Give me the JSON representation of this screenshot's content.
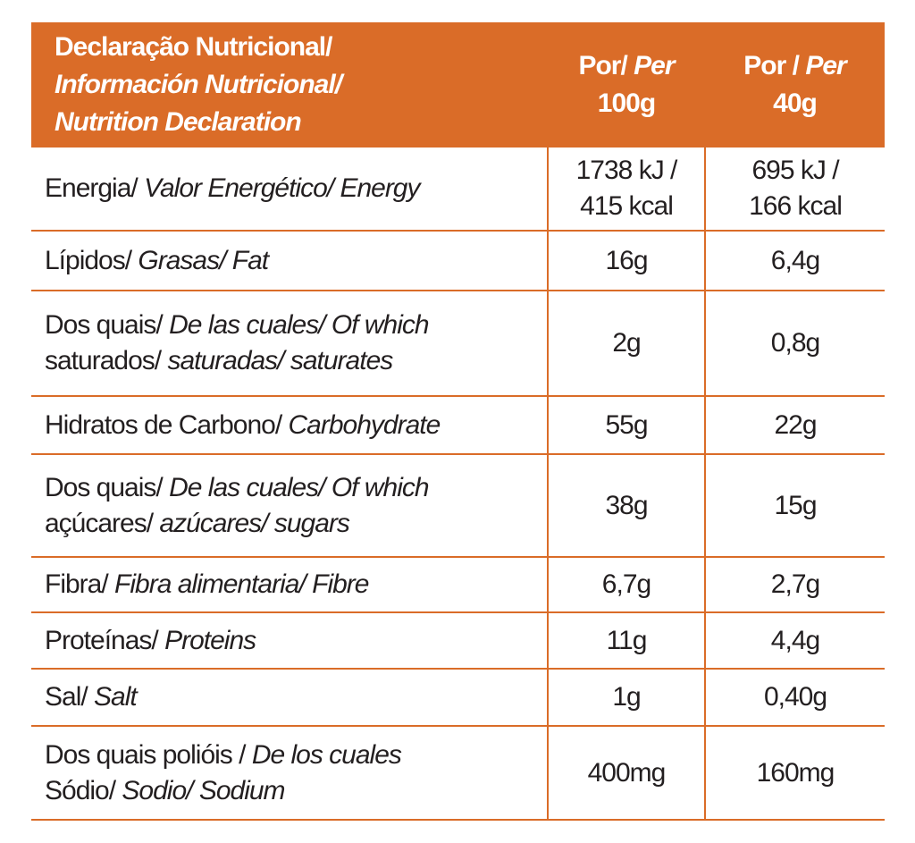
{
  "header": {
    "title": [
      "Declaração Nutricional/",
      "Información Nutricional/",
      "Nutrition Declaration"
    ],
    "per100": [
      "Por/",
      "Per",
      "100g"
    ],
    "per40": [
      "Por /",
      "Per",
      "40g"
    ]
  },
  "table": {
    "rows": [
      {
        "label": [
          "Energia/",
          "Valor Energético/ Energy"
        ],
        "per100": [
          "1738 kJ /",
          "415 kcal"
        ],
        "per40": [
          "695 kJ /",
          "166 kcal"
        ]
      },
      {
        "label": [
          "Lípidos/",
          "Grasas/ Fat"
        ],
        "per100": "16g",
        "per40": "6,4g"
      },
      {
        "label": [
          "Dos quais/",
          "De las cuales/ Of which",
          "saturados/",
          "saturadas/ saturates"
        ],
        "per100": "2g",
        "per40": "0,8g"
      },
      {
        "label": [
          "Hidratos de Carbono/",
          "Carbohydrate"
        ],
        "per100": "55g",
        "per40": "22g"
      },
      {
        "label": [
          "Dos quais/",
          "De las cuales/ Of which",
          "açúcares/",
          "azúcares/ sugars"
        ],
        "per100": "38g",
        "per40": "15g"
      },
      {
        "label": [
          "Fibra/",
          "Fibra alimentaria/ Fibre"
        ],
        "per100": "6,7g",
        "per40": "2,7g"
      },
      {
        "label": [
          "Proteínas/",
          "Proteins"
        ],
        "per100": "11g",
        "per40": "4,4g"
      },
      {
        "label": [
          "Sal/",
          "Salt"
        ],
        "per100": "1g",
        "per40": "0,40g"
      },
      {
        "label": [
          "Dos quais polióis /",
          "De los cuales",
          "Sódio/",
          "Sodio/ Sodium"
        ],
        "per100": "400mg",
        "per40": "160mg"
      }
    ]
  }
}
